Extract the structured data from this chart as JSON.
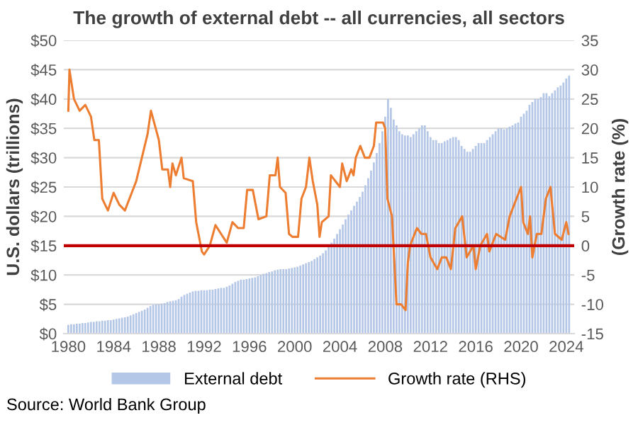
{
  "chart_data": {
    "type": "bar",
    "title": "The growth of external debt -- all currencies, all sectors",
    "ylabel": "U.S. dollars (trillions)",
    "y2label": "(Growth rate (%)",
    "annotations": [
      "Source: World Bank Group"
    ],
    "series": [
      {
        "name": "External debt",
        "color": "#b4c7e7",
        "x": [
          1980,
          1980.25,
          1980.5,
          1980.75,
          1981,
          1981.25,
          1981.5,
          1981.75,
          1982,
          1982.25,
          1982.5,
          1982.75,
          1983,
          1983.25,
          1983.5,
          1983.75,
          1984,
          1984.25,
          1984.5,
          1984.75,
          1985,
          1985.25,
          1985.5,
          1985.75,
          1986,
          1986.25,
          1986.5,
          1986.75,
          1987,
          1987.25,
          1987.5,
          1987.75,
          1988,
          1988.25,
          1988.5,
          1988.75,
          1989,
          1989.25,
          1989.5,
          1989.75,
          1990,
          1990.25,
          1990.5,
          1990.75,
          1991,
          1991.25,
          1991.5,
          1991.75,
          1992,
          1992.25,
          1992.5,
          1992.75,
          1993,
          1993.25,
          1993.5,
          1993.75,
          1994,
          1994.25,
          1994.5,
          1994.75,
          1995,
          1995.25,
          1995.5,
          1995.75,
          1996,
          1996.25,
          1996.5,
          1996.75,
          1997,
          1997.25,
          1997.5,
          1997.75,
          1998,
          1998.25,
          1998.5,
          1998.75,
          1999,
          1999.25,
          1999.5,
          1999.75,
          2000,
          2000.25,
          2000.5,
          2000.75,
          2001,
          2001.25,
          2001.5,
          2001.75,
          2002,
          2002.25,
          2002.5,
          2002.75,
          2003,
          2003.25,
          2003.5,
          2003.75,
          2004,
          2004.25,
          2004.5,
          2004.75,
          2005,
          2005.25,
          2005.5,
          2005.75,
          2006,
          2006.25,
          2006.5,
          2006.75,
          2007,
          2007.25,
          2007.5,
          2007.75,
          2008,
          2008.25,
          2008.5,
          2008.75,
          2009,
          2009.25,
          2009.5,
          2009.75,
          2010,
          2010.25,
          2010.5,
          2010.75,
          2011,
          2011.25,
          2011.5,
          2011.75,
          2012,
          2012.25,
          2012.5,
          2012.75,
          2013,
          2013.25,
          2013.5,
          2013.75,
          2014,
          2014.25,
          2014.5,
          2014.75,
          2015,
          2015.25,
          2015.5,
          2015.75,
          2016,
          2016.25,
          2016.5,
          2016.75,
          2017,
          2017.25,
          2017.5,
          2017.75,
          2018,
          2018.25,
          2018.5,
          2018.75,
          2019,
          2019.25,
          2019.5,
          2019.75,
          2020,
          2020.25,
          2020.5,
          2020.75,
          2021,
          2021.25,
          2021.5,
          2021.75,
          2022,
          2022.25,
          2022.5,
          2022.75,
          2023,
          2023.25,
          2023.5,
          2023.75,
          2024,
          2024.25
        ],
        "values": [
          1.5,
          1.6,
          1.6,
          1.7,
          1.7,
          1.8,
          1.8,
          1.9,
          2.0,
          2.0,
          2.1,
          2.1,
          2.2,
          2.2,
          2.3,
          2.3,
          2.4,
          2.5,
          2.6,
          2.7,
          2.8,
          2.9,
          3.1,
          3.3,
          3.5,
          3.7,
          3.9,
          4.1,
          4.4,
          4.7,
          4.9,
          5.0,
          5.0,
          5.1,
          5.2,
          5.4,
          5.5,
          5.6,
          5.7,
          5.9,
          6.3,
          6.6,
          6.8,
          7.0,
          7.2,
          7.3,
          7.3,
          7.4,
          7.4,
          7.4,
          7.5,
          7.5,
          7.6,
          7.7,
          7.8,
          7.8,
          8.0,
          8.2,
          8.5,
          8.8,
          9.0,
          9.2,
          9.2,
          9.3,
          9.4,
          9.5,
          9.6,
          9.8,
          10.0,
          10.2,
          10.3,
          10.5,
          10.6,
          10.8,
          10.9,
          11.0,
          11.0,
          11.0,
          11.1,
          11.2,
          11.3,
          11.4,
          11.6,
          11.8,
          12.0,
          12.2,
          12.4,
          12.7,
          13.0,
          13.3,
          13.7,
          14.2,
          14.8,
          15.5,
          16.2,
          17.0,
          17.8,
          18.6,
          19.5,
          20.3,
          21.0,
          21.8,
          22.5,
          23.3,
          24.2,
          25.3,
          26.5,
          27.8,
          29.2,
          30.8,
          32.5,
          34.5,
          37.0,
          40.0,
          38.5,
          36.5,
          35.5,
          34.5,
          34.0,
          33.8,
          33.8,
          33.5,
          34.0,
          34.5,
          35.0,
          35.5,
          35.5,
          34.5,
          33.5,
          33.0,
          33.0,
          32.5,
          32.5,
          32.8,
          33.0,
          33.3,
          33.5,
          33.5,
          33.0,
          32.0,
          31.5,
          31.0,
          31.0,
          31.5,
          32.0,
          32.5,
          32.5,
          32.5,
          33.0,
          33.5,
          34.0,
          34.5,
          35.0,
          35.0,
          34.8,
          35.0,
          35.3,
          35.5,
          35.8,
          36.0,
          37.0,
          37.5,
          38.0,
          39.0,
          39.5,
          40.0,
          40.0,
          40.3,
          41.0,
          41.0,
          40.5,
          41.0,
          41.5,
          42.0,
          42.3,
          42.8,
          43.5,
          44.0
        ]
      },
      {
        "name": "Growth rate (RHS)",
        "type": "line",
        "axis": "y2",
        "color": "#ed7d31",
        "x": [
          1980,
          1980.1,
          1980.5,
          1981,
          1981.5,
          1982,
          1982.3,
          1982.7,
          1983,
          1983.5,
          1984,
          1984.5,
          1985,
          1986,
          1987,
          1987.3,
          1988,
          1988.3,
          1988.8,
          1989,
          1989.2,
          1989.5,
          1990,
          1990.2,
          1991,
          1991.3,
          1991.8,
          1992,
          1992.5,
          1993,
          1993.5,
          1994,
          1994.5,
          1995,
          1995.5,
          1995.8,
          1996.3,
          1996.8,
          1997.5,
          1997.8,
          1998.3,
          1998.5,
          1998.7,
          1999.2,
          1999.5,
          1999.8,
          2000.3,
          2000.6,
          2001,
          2001.3,
          2001.6,
          2002.0,
          2002.2,
          2002.4,
          2003.0,
          2003.2,
          2004.0,
          2004.2,
          2004.6,
          2005.0,
          2005.2,
          2005.4,
          2005.8,
          2006.0,
          2006.2,
          2006.6,
          2007.0,
          2007.2,
          2007.8,
          2008.0,
          2008.2,
          2008.6,
          2009.0,
          2009.4,
          2009.8,
          2010.0,
          2010.2,
          2010.8,
          2011.2,
          2011.6,
          2012.0,
          2012.6,
          2013.0,
          2013.4,
          2013.8,
          2014.2,
          2014.8,
          2015.2,
          2015.8,
          2016.0,
          2016.4,
          2017.0,
          2017.2,
          2017.8,
          2018.6,
          2019.0,
          2019.6,
          2020.0,
          2020.2,
          2020.6,
          2020.8,
          2021.0,
          2021.4,
          2021.8,
          2022.2,
          2022.6,
          2023.0,
          2023.6,
          2024.0,
          2024.2
        ],
        "values": [
          23,
          30,
          25,
          23,
          24,
          22,
          18,
          18,
          8,
          6,
          9,
          7,
          6,
          11,
          19,
          23,
          18,
          13,
          13,
          10,
          14,
          12,
          15,
          11.5,
          11,
          4,
          -1,
          -1.5,
          0,
          3.5,
          2,
          0.5,
          4,
          3,
          3,
          9.5,
          9.5,
          4.5,
          5,
          12,
          12,
          15,
          10,
          9,
          2,
          1.5,
          1.5,
          8,
          10,
          15,
          11,
          7,
          1.5,
          4,
          5,
          12,
          10,
          14,
          11,
          13,
          12,
          15,
          17,
          16,
          15,
          15,
          17,
          21,
          21,
          20,
          8,
          5,
          -10,
          -10,
          -11,
          -3,
          0,
          3,
          2,
          2,
          -2,
          -4,
          -2,
          -2,
          -4,
          3,
          5,
          -2,
          0,
          -4,
          0,
          2,
          -1,
          2,
          1,
          5,
          8,
          10,
          4,
          2,
          5,
          -2,
          2,
          2,
          8,
          10,
          2,
          1,
          4,
          2
        ]
      }
    ],
    "ref_lines": [
      {
        "axis": "y2",
        "value": 0,
        "color": "#c00000"
      }
    ],
    "xlim": [
      1979.6,
      2024.7
    ],
    "xticks": [
      1980,
      1984,
      1988,
      1992,
      1996,
      2000,
      2004,
      2008,
      2012,
      2016,
      2020,
      2024
    ],
    "ylim": [
      0,
      50
    ],
    "yticks": [
      {
        "value": 0,
        "label": "$0"
      },
      {
        "value": 5,
        "label": "$5"
      },
      {
        "value": 10,
        "label": "$10"
      },
      {
        "value": 15,
        "label": "$15"
      },
      {
        "value": 20,
        "label": "$20"
      },
      {
        "value": 25,
        "label": "$25"
      },
      {
        "value": 30,
        "label": "$30"
      },
      {
        "value": 35,
        "label": "$35"
      },
      {
        "value": 40,
        "label": "$40"
      },
      {
        "value": 45,
        "label": "$45"
      },
      {
        "value": 50,
        "label": "$50"
      }
    ],
    "y2lim": [
      -15,
      35
    ],
    "y2ticks": [
      -15,
      -10,
      -5,
      0,
      5,
      10,
      15,
      20,
      25,
      30,
      35
    ],
    "grid": "y",
    "legend": "bottom"
  }
}
